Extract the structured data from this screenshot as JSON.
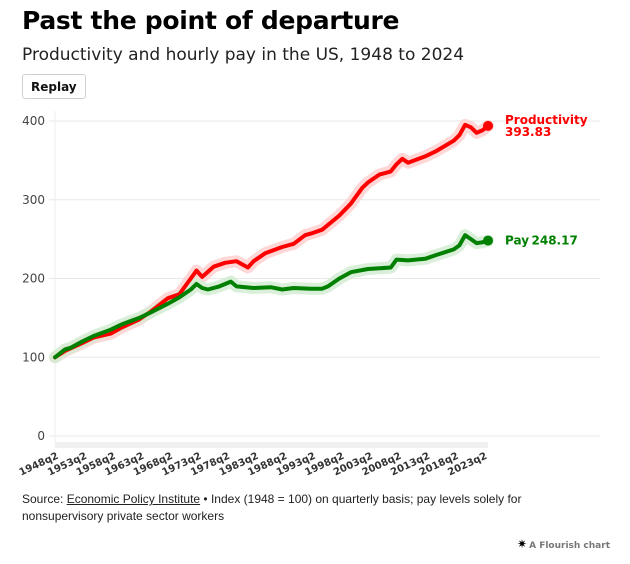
{
  "header": {
    "title": "Past the point of departure",
    "subtitle": "Productivity and hourly pay in the US, 1948 to 2024",
    "replay_label": "Replay"
  },
  "footer": {
    "source_prefix": "Source: ",
    "source_link": "Economic Policy Institute",
    "note": " • Index (1948 = 100) on quarterly basis; pay levels solely for nonsupervisory private sector workers",
    "credit": "A Flourish chart",
    "credit_icon": "flourish-star-icon"
  },
  "chart_data": {
    "type": "line",
    "title": "Past the point of departure",
    "subtitle": "Productivity and hourly pay in the US, 1948 to 2024",
    "xlabel": "",
    "ylabel": "",
    "ylim": [
      0,
      400
    ],
    "yticks": [
      0,
      100,
      200,
      300,
      400
    ],
    "xlim": [
      1948.25,
      2024
    ],
    "xtick_labels": [
      "1948q2",
      "1953q2",
      "1958q2",
      "1963q2",
      "1968q2",
      "1973q2",
      "1978q2",
      "1983q2",
      "1988q2",
      "1993q2",
      "1998q2",
      "2003q2",
      "2008q2",
      "2013q2",
      "2018q2",
      "2023q2"
    ],
    "grid": true,
    "legend": "direct-labels-right",
    "series": [
      {
        "name": "Productivity",
        "color": "#ff0000",
        "halo_color": "#ffd0d0",
        "end_label": "Productivity",
        "end_value": "393.83",
        "points": [
          [
            1948.25,
            100
          ],
          [
            1950,
            108
          ],
          [
            1953,
            118
          ],
          [
            1955,
            125
          ],
          [
            1958,
            130
          ],
          [
            1960,
            138
          ],
          [
            1963,
            148
          ],
          [
            1965,
            158
          ],
          [
            1968,
            175
          ],
          [
            1970,
            180
          ],
          [
            1972,
            200
          ],
          [
            1973,
            210
          ],
          [
            1974,
            202
          ],
          [
            1976,
            215
          ],
          [
            1978,
            220
          ],
          [
            1980,
            222
          ],
          [
            1982,
            214
          ],
          [
            1983,
            222
          ],
          [
            1985,
            232
          ],
          [
            1988,
            240
          ],
          [
            1990,
            244
          ],
          [
            1992,
            255
          ],
          [
            1993,
            257
          ],
          [
            1995,
            262
          ],
          [
            1998,
            280
          ],
          [
            2000,
            295
          ],
          [
            2002,
            315
          ],
          [
            2003,
            322
          ],
          [
            2005,
            332
          ],
          [
            2007,
            336
          ],
          [
            2008,
            345
          ],
          [
            2009,
            352
          ],
          [
            2010,
            347
          ],
          [
            2013,
            355
          ],
          [
            2015,
            362
          ],
          [
            2018,
            375
          ],
          [
            2019,
            382
          ],
          [
            2020,
            395
          ],
          [
            2021,
            392
          ],
          [
            2022,
            385
          ],
          [
            2023,
            388
          ],
          [
            2024,
            393.83
          ]
        ]
      },
      {
        "name": "Pay",
        "color": "#008000",
        "halo_color": "#d4ecd4",
        "end_label": "Pay",
        "end_value": "248.17",
        "points": [
          [
            1948.25,
            100
          ],
          [
            1950,
            110
          ],
          [
            1951,
            112
          ],
          [
            1953,
            120
          ],
          [
            1955,
            127
          ],
          [
            1958,
            135
          ],
          [
            1960,
            142
          ],
          [
            1963,
            150
          ],
          [
            1965,
            157
          ],
          [
            1968,
            168
          ],
          [
            1970,
            176
          ],
          [
            1972,
            186
          ],
          [
            1973,
            193
          ],
          [
            1974,
            188
          ],
          [
            1975,
            186
          ],
          [
            1977,
            190
          ],
          [
            1979,
            196
          ],
          [
            1980,
            190
          ],
          [
            1983,
            188
          ],
          [
            1986,
            189
          ],
          [
            1988,
            186
          ],
          [
            1990,
            188
          ],
          [
            1993,
            187
          ],
          [
            1995,
            187
          ],
          [
            1996,
            190
          ],
          [
            1998,
            200
          ],
          [
            2000,
            208
          ],
          [
            2003,
            212
          ],
          [
            2005,
            213
          ],
          [
            2007,
            214
          ],
          [
            2008,
            224
          ],
          [
            2010,
            223
          ],
          [
            2013,
            225
          ],
          [
            2015,
            230
          ],
          [
            2018,
            237
          ],
          [
            2019,
            242
          ],
          [
            2020,
            255
          ],
          [
            2021,
            250
          ],
          [
            2022,
            245
          ],
          [
            2023,
            246
          ],
          [
            2024,
            248.17
          ]
        ]
      }
    ]
  }
}
